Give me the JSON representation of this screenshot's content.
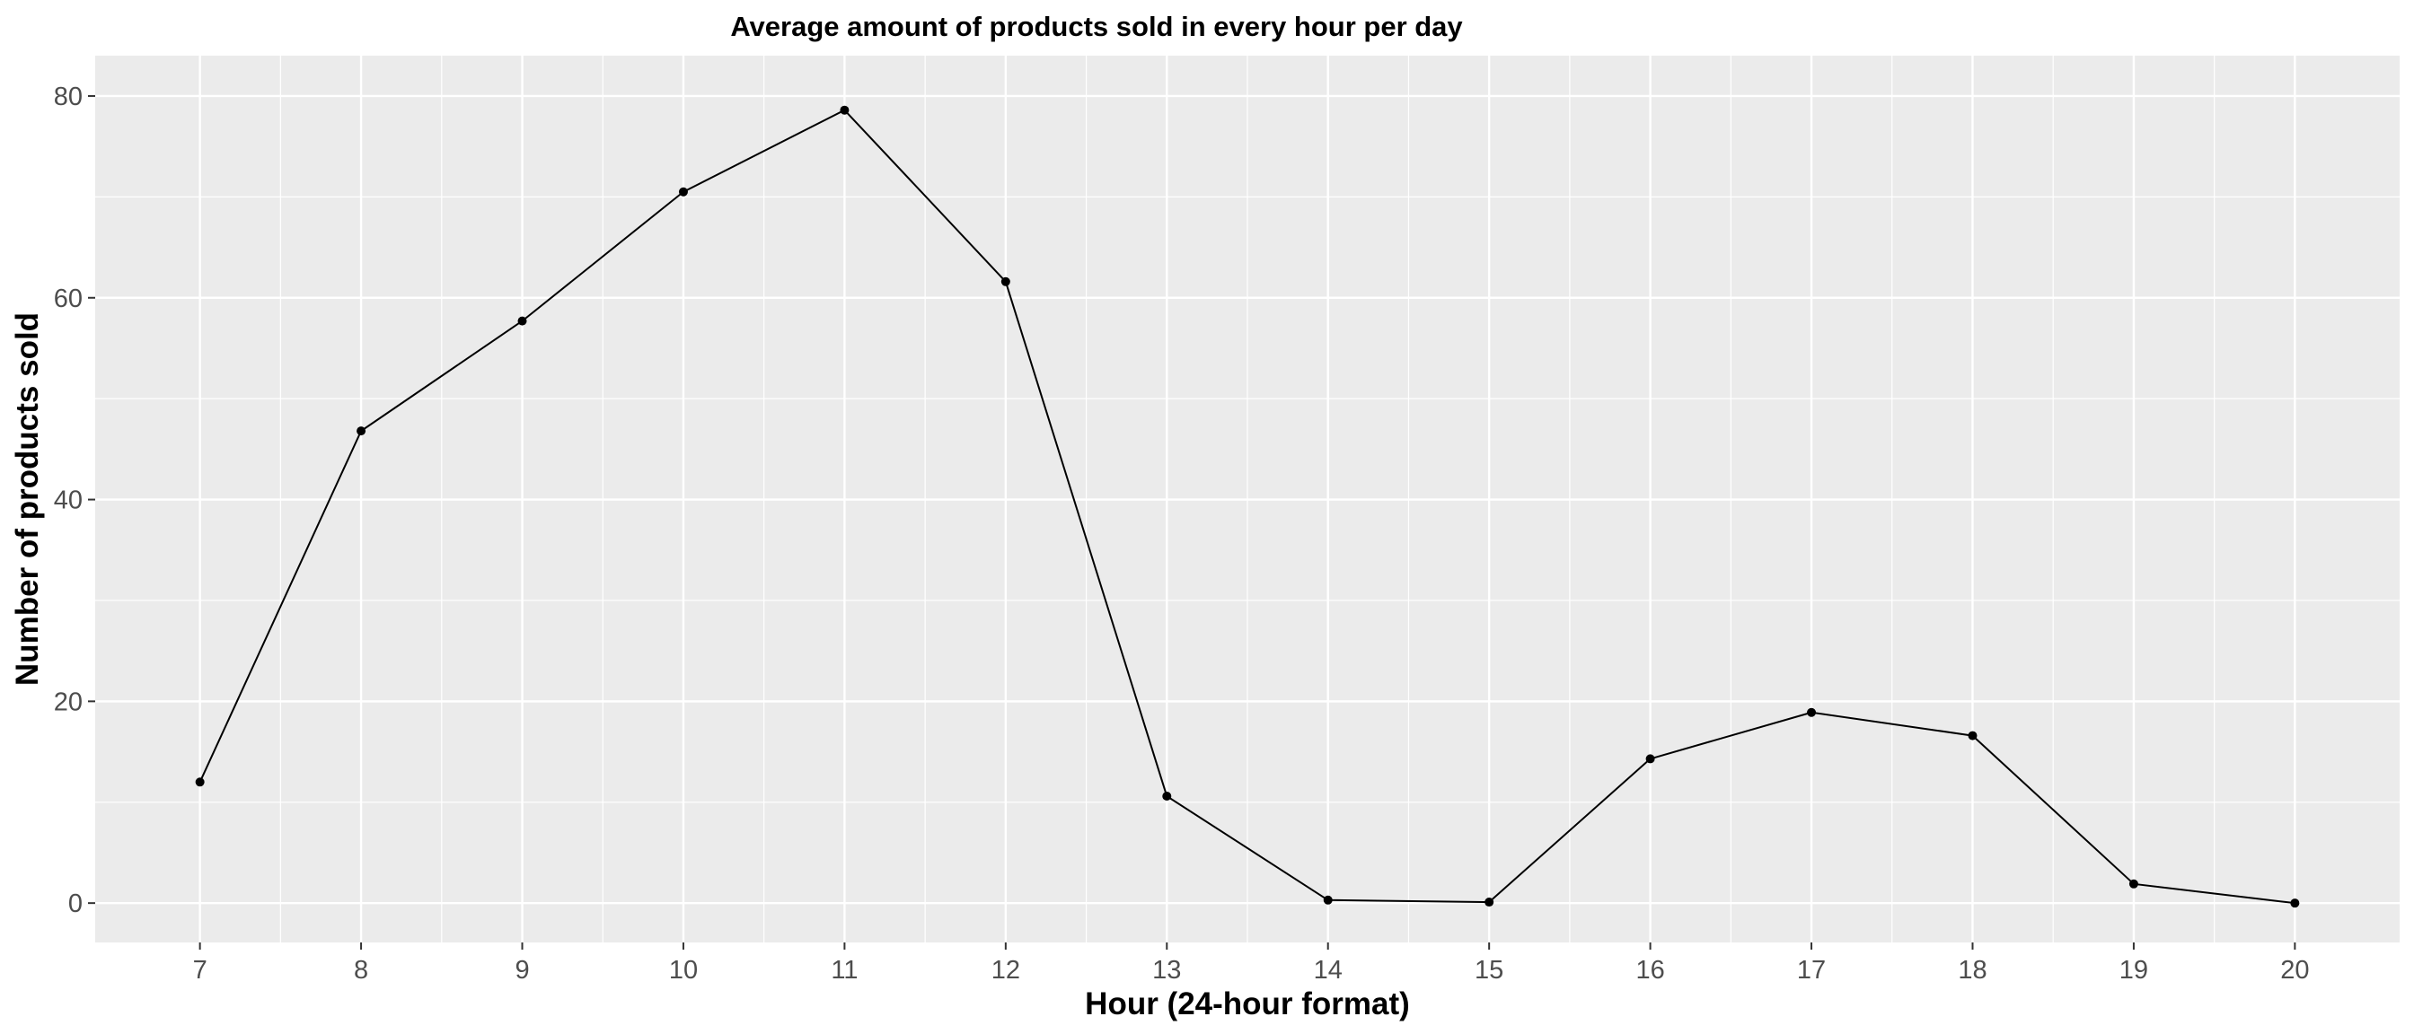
{
  "chart_data": {
    "type": "line",
    "title": "Average amount of products sold in every hour per day",
    "xlabel": "Hour (24-hour format)",
    "ylabel": "Number of products sold",
    "x": [
      7,
      8,
      9,
      10,
      11,
      12,
      13,
      14,
      15,
      16,
      17,
      18,
      19,
      20
    ],
    "series": [
      {
        "values": [
          12,
          46.8,
          57.7,
          70.5,
          78.6,
          61.6,
          10.6,
          0.3,
          0.1,
          14.3,
          18.9,
          16.6,
          1.9,
          0
        ]
      }
    ],
    "xlim": [
      6.35,
      20.65
    ],
    "ylim": [
      -3.9,
      84.0
    ],
    "x_ticks": [
      "7",
      "8",
      "9",
      "10",
      "11",
      "12",
      "13",
      "14",
      "15",
      "16",
      "17",
      "18",
      "19",
      "20"
    ],
    "y_ticks": [
      "0",
      "20",
      "40",
      "60",
      "80"
    ],
    "grid": true,
    "legend": "none",
    "colors": {
      "panel_background": "#ebebeb",
      "grid_major": "#ffffff",
      "line": "#000000",
      "point": "#000000",
      "tick_label": "#4d4d4d"
    }
  }
}
